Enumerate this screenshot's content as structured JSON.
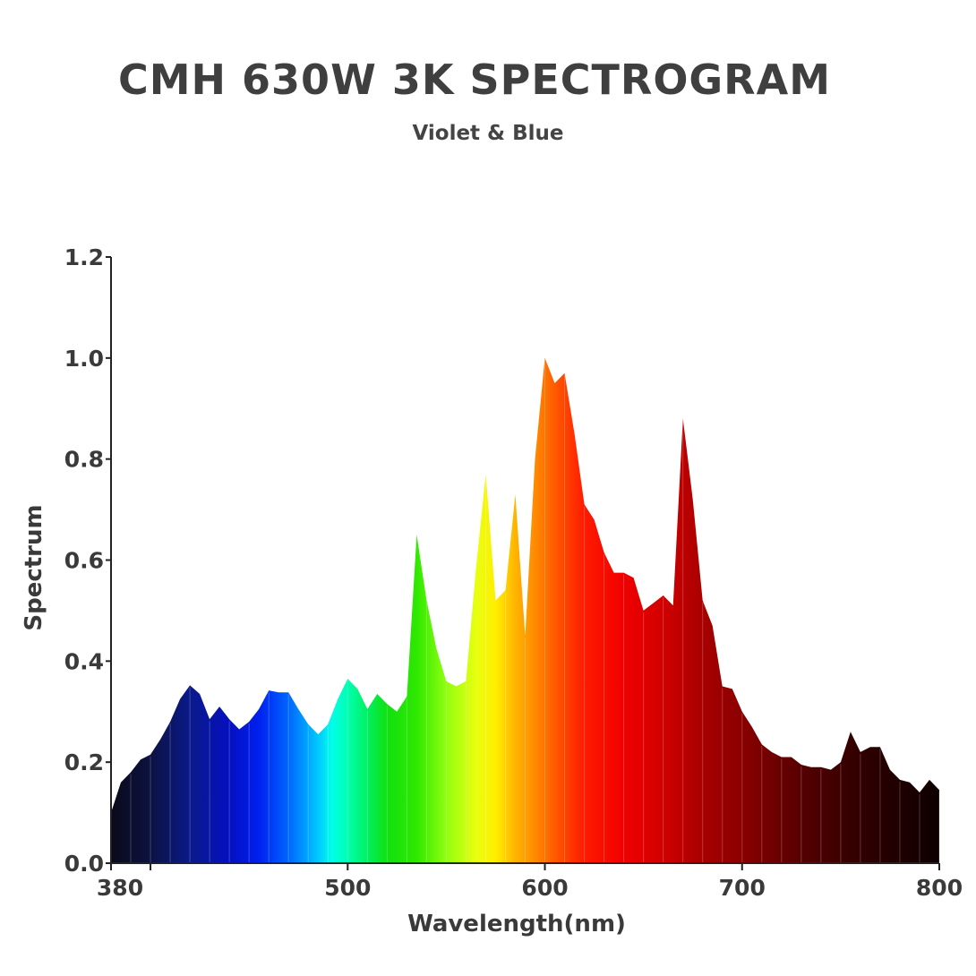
{
  "title": "CMH 630W 3K SPECTROGRAM",
  "subtitle": "Violet & Blue",
  "chart_data": {
    "type": "area",
    "title": "CMH 630W 3K SPECTROGRAM",
    "subtitle": "Violet & Blue",
    "xlabel": "Wavelength(nm)",
    "ylabel": "Spectrum",
    "xlim": [
      380,
      800
    ],
    "ylim": [
      0,
      1.2
    ],
    "x_ticks": [
      380,
      400,
      500,
      600,
      700,
      800
    ],
    "x_tick_labels": [
      "380",
      "",
      "500",
      "600",
      "700",
      "800"
    ],
    "y_ticks": [
      0.0,
      0.2,
      0.4,
      0.6,
      0.8,
      1.0,
      1.2
    ],
    "y_tick_labels": [
      "0.0",
      "0.2",
      "0.4",
      "0.6",
      "0.8",
      "1.0",
      "1.2"
    ],
    "grid": false,
    "fill": "visible-spectrum color gradient by wavelength",
    "x": [
      380,
      385,
      390,
      395,
      400,
      405,
      410,
      415,
      420,
      425,
      430,
      435,
      440,
      445,
      450,
      455,
      460,
      465,
      470,
      475,
      480,
      485,
      490,
      495,
      500,
      505,
      510,
      515,
      520,
      525,
      530,
      535,
      540,
      545,
      550,
      555,
      560,
      565,
      570,
      575,
      580,
      585,
      590,
      595,
      600,
      605,
      610,
      615,
      620,
      625,
      630,
      635,
      640,
      645,
      650,
      655,
      660,
      665,
      670,
      675,
      680,
      685,
      690,
      695,
      700,
      705,
      710,
      715,
      720,
      725,
      730,
      735,
      740,
      745,
      750,
      755,
      760,
      765,
      770,
      775,
      780,
      785,
      790,
      795,
      800
    ],
    "y": [
      0.1,
      0.16,
      0.18,
      0.205,
      0.215,
      0.245,
      0.28,
      0.325,
      0.352,
      0.335,
      0.285,
      0.31,
      0.285,
      0.265,
      0.28,
      0.305,
      0.342,
      0.338,
      0.338,
      0.305,
      0.275,
      0.255,
      0.275,
      0.325,
      0.365,
      0.345,
      0.305,
      0.335,
      0.315,
      0.3,
      0.33,
      0.65,
      0.52,
      0.425,
      0.36,
      0.35,
      0.36,
      0.58,
      0.77,
      0.52,
      0.54,
      0.73,
      0.45,
      0.8,
      1.0,
      0.95,
      0.97,
      0.85,
      0.71,
      0.68,
      0.615,
      0.575,
      0.575,
      0.565,
      0.5,
      0.515,
      0.53,
      0.51,
      0.88,
      0.72,
      0.52,
      0.47,
      0.35,
      0.345,
      0.3,
      0.27,
      0.235,
      0.22,
      0.21,
      0.21,
      0.195,
      0.19,
      0.19,
      0.185,
      0.2,
      0.26,
      0.22,
      0.23,
      0.23,
      0.185,
      0.165,
      0.16,
      0.14,
      0.165,
      0.145
    ]
  }
}
